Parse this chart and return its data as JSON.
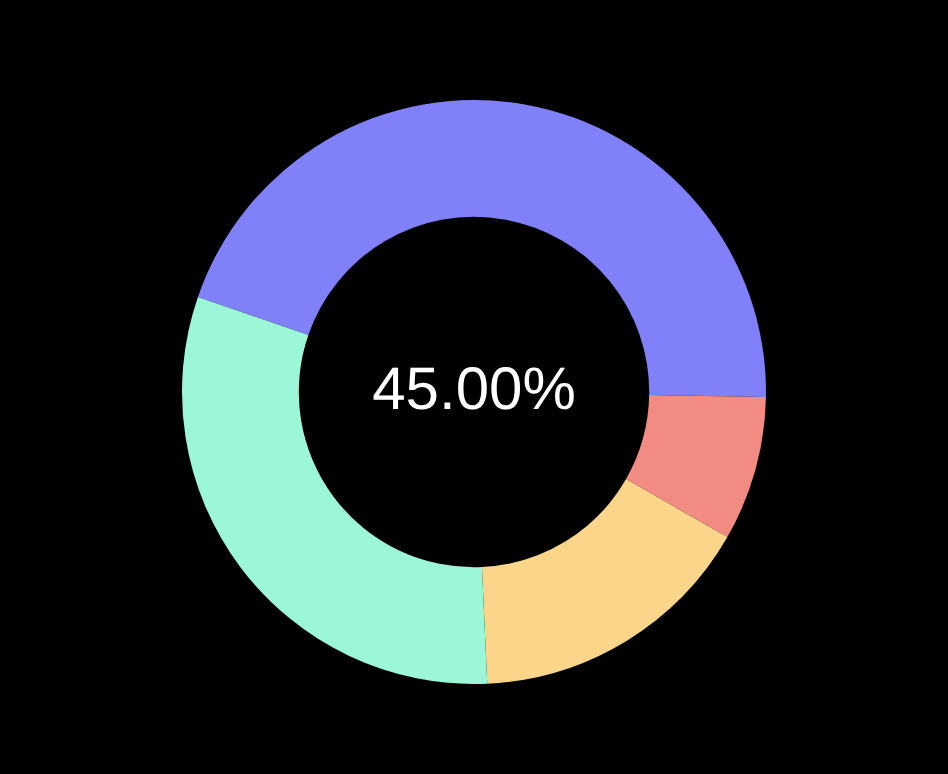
{
  "chart_data": {
    "type": "donut",
    "categories": [
      null,
      null,
      null,
      null
    ],
    "values": [
      45,
      8,
      16,
      31
    ],
    "colors": [
      "#8080f8",
      "#f28b82",
      "#fbd68a",
      "#9cf6d8"
    ],
    "annotations": [
      "45.00%"
    ],
    "legend": false
  }
}
